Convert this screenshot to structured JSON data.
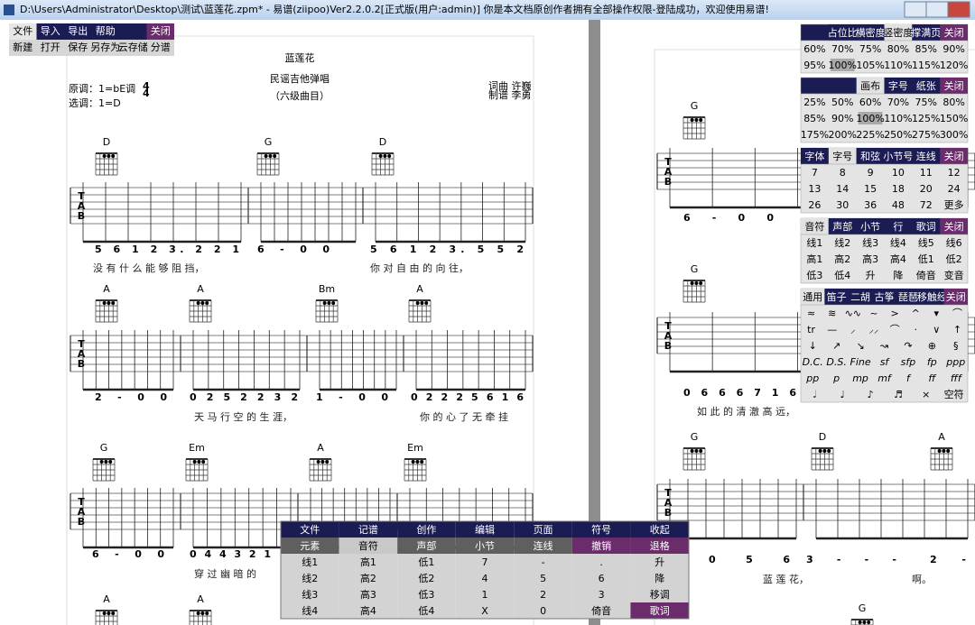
{
  "window": {
    "title": "D:\\Users\\Administrator\\Desktop\\测试\\蓝莲花.zpm* - 易谱(ziipoo)Ver2.2.0.2[正式版(用户:admin)]   你是本文档原创作者拥有全部操作权限-登陆成功，欢迎使用易谱!"
  },
  "menu": {
    "tabs": [
      "文件",
      "导入",
      "导出",
      "帮助",
      "关闭"
    ],
    "items": [
      "新建",
      "打开",
      "保存",
      "另存为",
      "云存储",
      "分谱"
    ]
  },
  "score": {
    "title": "蓝莲花",
    "subtitle": "民谣吉他弹唱",
    "level": "（六级曲目）",
    "original_key": "原调：1=bE调",
    "time_signature": [
      "4",
      "4"
    ],
    "selected_key": "选调：1=D",
    "lyricist": "词曲  许巍",
    "arranger": "制谱  李勇",
    "systems": [
      {
        "chords": [
          "D",
          "G",
          "D"
        ],
        "measures": [
          "5 6 1 2 3. 2 2 1",
          "6  -  0  0",
          "5 6 1 2 3. 5 5 2"
        ],
        "lyrics": [
          "没 有 什 么 能 够 阻 挡，",
          "你 对 自 由 的 向 往，"
        ]
      },
      {
        "chords": [
          "A",
          "A",
          "Bm",
          "A"
        ],
        "measures": [
          "2  -  0  0",
          "0 2 5 2 2 3 2",
          "1  -  0  0",
          "0 2 2 2 5 6 1 6"
        ],
        "lyrics": [
          "天 马 行 空 的 生 涯，",
          "你 的 心 了 无 牵 挂"
        ]
      },
      {
        "chords": [
          "G",
          "Em",
          "A",
          "Em"
        ],
        "measures": [
          "6  -  0  0",
          "0 4 4 3 2 1"
        ],
        "lyrics": [
          "穿 过 幽 暗 的"
        ]
      },
      {
        "chords": [
          "A",
          "A"
        ],
        "measures": [],
        "lyrics": []
      }
    ]
  },
  "page2": {
    "systems": [
      {
        "chords": [
          "G"
        ],
        "measures": [
          "6  -  0  0"
        ],
        "lyrics": []
      },
      {
        "chords": [
          "G"
        ],
        "measures": [
          "0 6 6 6 7 1 6"
        ],
        "lyrics": [
          "如 此 的 清 澈 高 远，"
        ]
      },
      {
        "chords": [
          "G",
          "D",
          "A"
        ],
        "measures": [
          "0  5 6",
          "3  -  -  -",
          "2  -"
        ],
        "lyrics": [
          "蓝 莲 花，",
          "啊。"
        ]
      },
      {
        "chords": [
          "G"
        ],
        "measures": [],
        "lyrics": []
      }
    ]
  },
  "panels": [
    {
      "tabs": [
        "占位比",
        "横密度",
        "竖密度",
        "撑满页",
        "关闭"
      ],
      "rows": [
        [
          "60%",
          "70%",
          "75%",
          "80%",
          "85%",
          "90%"
        ],
        [
          "95%",
          "100%",
          "105%",
          "110%",
          "115%",
          "120%"
        ]
      ]
    },
    {
      "tabs": [
        "画布",
        "字号",
        "纸张",
        "关闭"
      ],
      "rows": [
        [
          "25%",
          "50%",
          "60%",
          "70%",
          "75%",
          "80%"
        ],
        [
          "85%",
          "90%",
          "100%",
          "110%",
          "125%",
          "150%"
        ],
        [
          "175%",
          "200%",
          "225%",
          "250%",
          "275%",
          "300%"
        ]
      ]
    },
    {
      "tabs": [
        "字体",
        "字号",
        "和弦",
        "小节号",
        "连线",
        "关闭"
      ],
      "rows": [
        [
          "7",
          "8",
          "9",
          "10",
          "11",
          "12"
        ],
        [
          "13",
          "14",
          "15",
          "18",
          "20",
          "24"
        ],
        [
          "26",
          "30",
          "36",
          "48",
          "72",
          "更多"
        ]
      ]
    },
    {
      "tabs": [
        "音符",
        "声部",
        "小节",
        "行",
        "歌词",
        "关闭"
      ],
      "rows": [
        [
          "线1",
          "线2",
          "线3",
          "线4",
          "线5",
          "线6"
        ],
        [
          "高1",
          "高2",
          "高3",
          "高4",
          "低1",
          "低2"
        ],
        [
          "低3",
          "低4",
          "升",
          "降",
          "倚音",
          "变音"
        ]
      ]
    },
    {
      "tabs": [
        "通用",
        "笛子",
        "二胡",
        "古筝",
        "琵琶",
        "移触经",
        "关闭"
      ],
      "rows": [
        [
          "≈",
          "≋",
          "∿∿",
          "~",
          ">",
          "^",
          "▾",
          "⌒"
        ],
        [
          "tr",
          "—",
          "⸝",
          "⸝⸝",
          "⌒",
          "·",
          "∨",
          "↑"
        ],
        [
          "↓",
          "↗",
          "↘",
          "↝",
          "↷",
          "⊕",
          "§"
        ],
        [
          "D.C.",
          "D.S.",
          "Fine",
          "sf",
          "sfp",
          "fp",
          "ppp"
        ],
        [
          "pp",
          "p",
          "mp",
          "mf",
          "f",
          "ff",
          "fff"
        ],
        [
          "𝅗𝅥",
          "♩",
          "♪",
          "♬",
          "×",
          "空符"
        ]
      ]
    }
  ],
  "toolbar": {
    "rows": [
      [
        "文件",
        "记谱",
        "创作",
        "编辑",
        "页面",
        "符号",
        "收起"
      ],
      [
        "元素",
        "音符",
        "声部",
        "小节",
        "连线",
        "撤销",
        "退格"
      ],
      [
        "线1",
        "高1",
        "低1",
        "7",
        "-",
        ".",
        "升"
      ],
      [
        "线2",
        "高2",
        "低2",
        "4",
        "5",
        "6",
        "降"
      ],
      [
        "线3",
        "高3",
        "低3",
        "1",
        "2",
        "3",
        "移调"
      ],
      [
        "线4",
        "高4",
        "低4",
        "X",
        "0",
        "倚音",
        "歌词"
      ]
    ]
  }
}
